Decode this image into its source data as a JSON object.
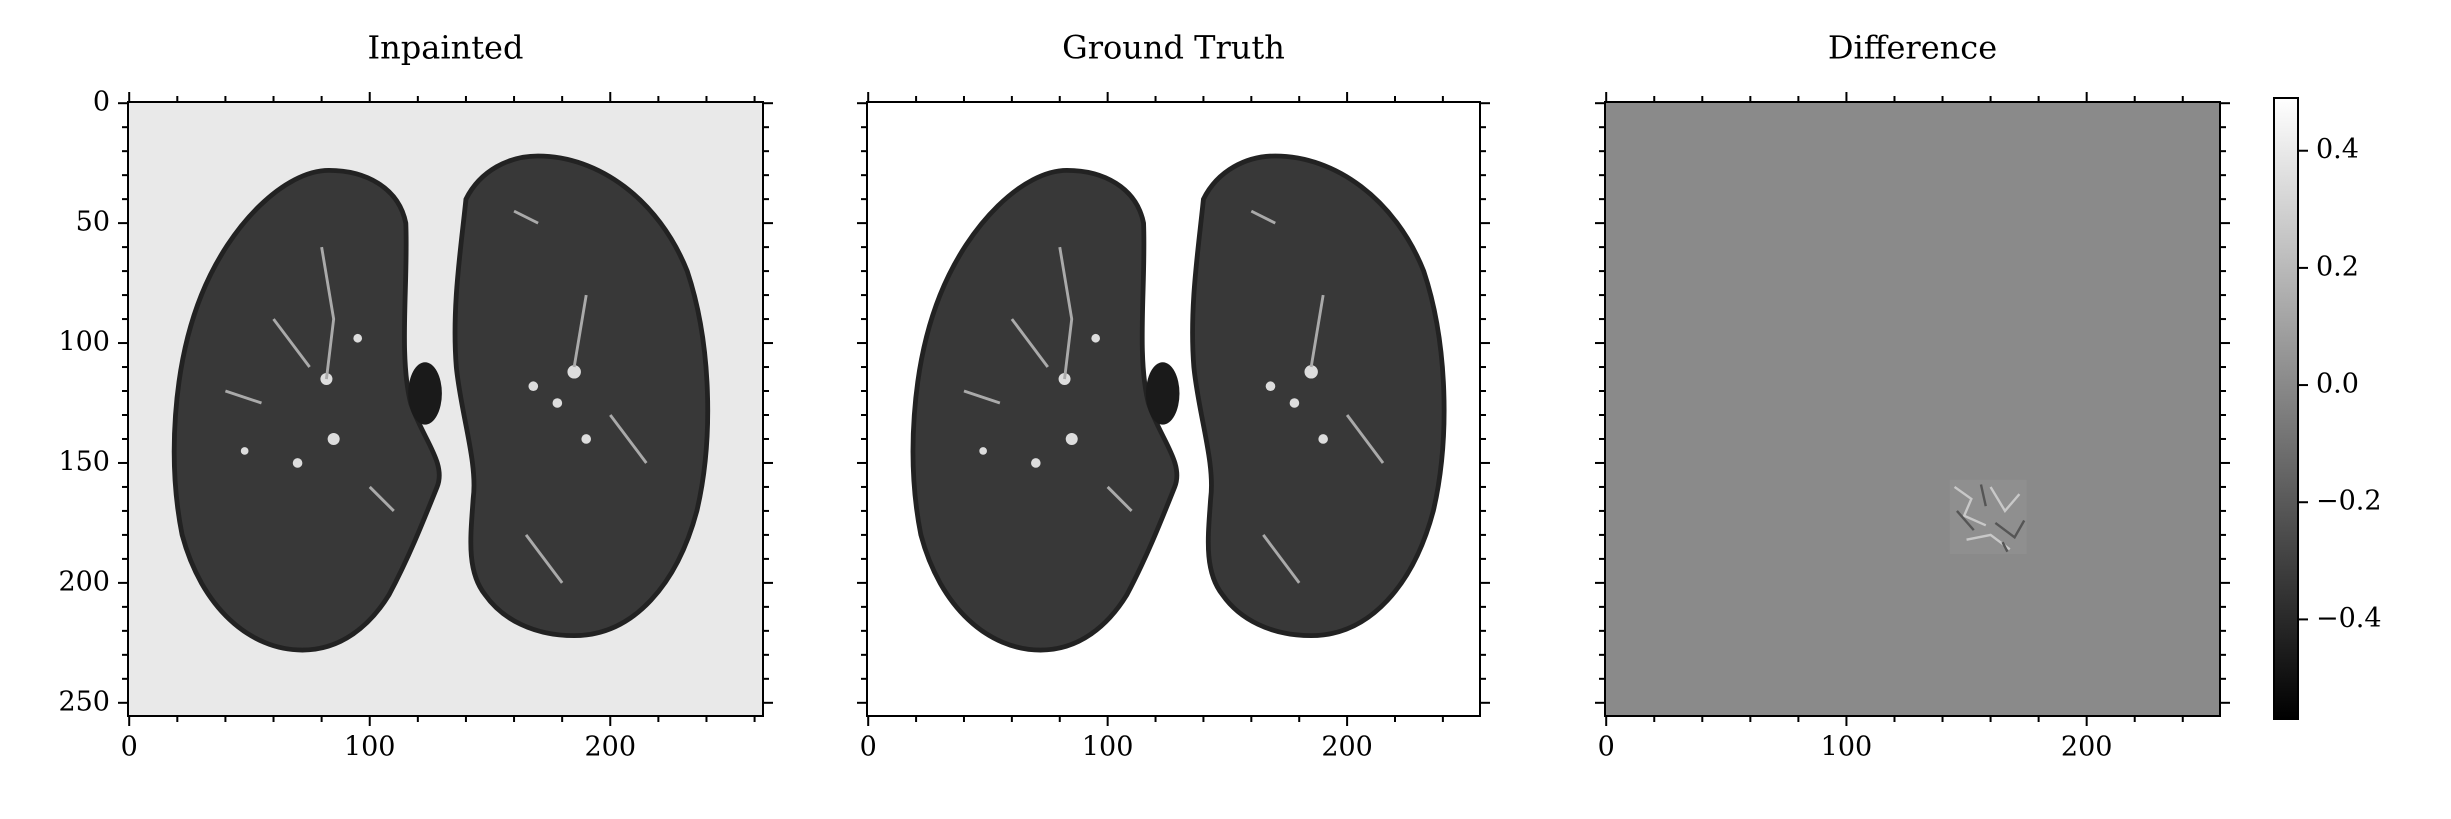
{
  "chart_data": [
    {
      "type": "image",
      "title": "Inpainted",
      "background": "#e9e9e9",
      "lungs": true,
      "xlim": [
        -0.5,
        263.5
      ],
      "ylim": [
        255.5,
        -0.5
      ],
      "xticks": [
        0,
        100,
        200
      ],
      "yticks": [
        0,
        50,
        100,
        150,
        200,
        250
      ],
      "show_yticklabels": true,
      "xminorticks": [
        20,
        40,
        60,
        80,
        120,
        140,
        160,
        180,
        220,
        240,
        260
      ],
      "yminorticks": [
        10,
        20,
        30,
        40,
        60,
        70,
        80,
        90,
        110,
        120,
        130,
        140,
        160,
        170,
        180,
        190,
        210,
        220,
        230,
        240
      ]
    },
    {
      "type": "image",
      "title": "Ground Truth",
      "background": "#ffffff",
      "lungs": true,
      "xlim": [
        -0.5,
        255.5
      ],
      "ylim": [
        255.5,
        -0.5
      ],
      "xticks": [
        0,
        100,
        200
      ],
      "yticks": [
        0,
        50,
        100,
        150,
        200,
        250
      ],
      "show_yticklabels": false,
      "xminorticks": [
        20,
        40,
        60,
        80,
        120,
        140,
        160,
        180,
        220,
        240
      ],
      "yminorticks": [
        10,
        20,
        30,
        40,
        60,
        70,
        80,
        90,
        110,
        120,
        130,
        140,
        160,
        170,
        180,
        190,
        210,
        220,
        230,
        240
      ]
    },
    {
      "type": "image",
      "title": "Difference",
      "background": "#8a8a8a",
      "lungs": false,
      "xlim": [
        -0.5,
        255.5
      ],
      "ylim": [
        255.5,
        -0.5
      ],
      "xticks": [
        0,
        100,
        200
      ],
      "yticks": [
        0,
        50,
        100,
        150,
        200,
        250
      ],
      "show_yticklabels": false,
      "xminorticks": [
        20,
        40,
        60,
        80,
        120,
        140,
        160,
        180,
        220,
        240
      ],
      "yminorticks": [
        10,
        20,
        30,
        40,
        60,
        70,
        80,
        90,
        110,
        120,
        130,
        140,
        160,
        170,
        180,
        190,
        210,
        220,
        230,
        240
      ],
      "colorbar": {
        "lim": [
          -0.57,
          0.49
        ],
        "ticks": [
          {
            "value": -0.4,
            "label": "−0.4"
          },
          {
            "value": -0.2,
            "label": "−0.2"
          },
          {
            "value": 0,
            "label": "0.0"
          },
          0.2,
          0.4
        ]
      }
    }
  ]
}
